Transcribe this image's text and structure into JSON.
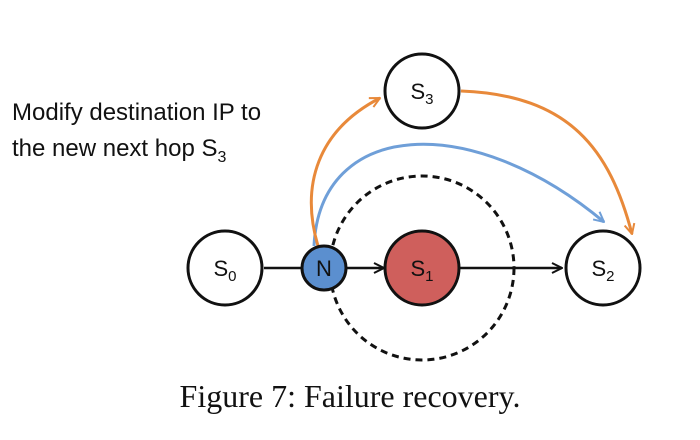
{
  "nodes": {
    "s0": {
      "main": "S",
      "sub": "0"
    },
    "n": {
      "main": "N",
      "sub": ""
    },
    "s1": {
      "main": "S",
      "sub": "1"
    },
    "s2": {
      "main": "S",
      "sub": "2"
    },
    "s3": {
      "main": "S",
      "sub": "3"
    }
  },
  "annotation": {
    "line1": "Modify destination IP to",
    "line2_main": "the new next hop S",
    "line2_sub": "3"
  },
  "caption": "Figure 7: Failure recovery.",
  "colors": {
    "node_fill": "#ffffff",
    "node_stroke": "#111111",
    "n_fill": "#5b8fcf",
    "s1_fill": "#cf5f5c",
    "orange_path": "#e8893a",
    "blue_path": "#6f9fd8",
    "edge": "#111111"
  }
}
